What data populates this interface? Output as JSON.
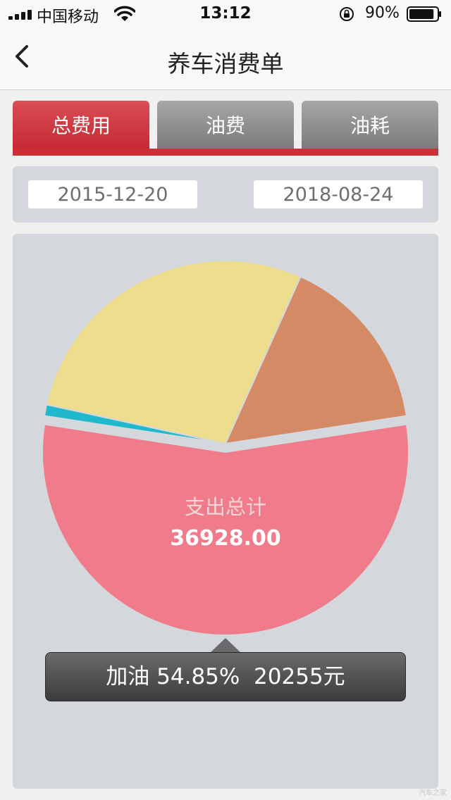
{
  "status_bar": {
    "carrier": "中国移动",
    "time": "13:12",
    "battery_percent": "90%",
    "battery_level": 0.9
  },
  "nav": {
    "title": "养车消费单"
  },
  "tabs": [
    {
      "label": "总费用",
      "active": true
    },
    {
      "label": "油费",
      "active": false
    },
    {
      "label": "油耗",
      "active": false
    }
  ],
  "date_range": {
    "start": "2015-12-20",
    "end": "2018-08-24"
  },
  "chart_data": {
    "type": "pie",
    "center_label": "支出总计",
    "center_value": "36928.00",
    "slices": [
      {
        "name": "加油",
        "percent": 54.85,
        "amount": 20255,
        "color": "#ef7b8b"
      },
      {
        "percent": 1.0,
        "color": "#1fb8cd"
      },
      {
        "percent": 28.3,
        "color": "#eddd8c"
      },
      {
        "percent": 15.85,
        "color": "#d58a66"
      }
    ],
    "selected_slice_index": 0,
    "tooltip_text": "加油 54.85%  20255元"
  },
  "colors": {
    "accent": "#cc2f37",
    "panel": "#d4d8dd",
    "inactive_tab": "#8e8e90"
  },
  "watermark": "汽车之家"
}
